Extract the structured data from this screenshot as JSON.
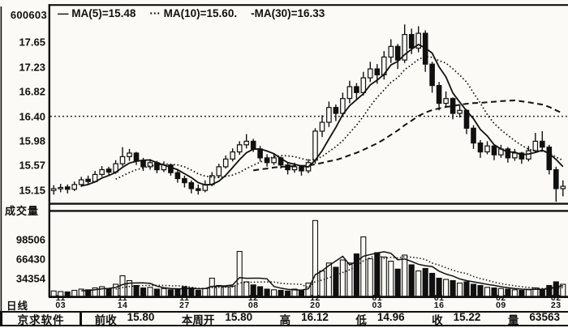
{
  "window": {
    "stock_code": "600603"
  },
  "legend": {
    "items": [
      "— MA(5)=15.48",
      "··· MA(10)=15.60.",
      "-MA(30)=16.33"
    ]
  },
  "volume_pane_title": "成交量",
  "period_label": "日线",
  "status_bar": {
    "brand": "京求软件",
    "fields": [
      {
        "label": "前收",
        "value": "15.80"
      },
      {
        "label": "本周开",
        "value": "15.80"
      },
      {
        "label": "高",
        "value": "16.12"
      },
      {
        "label": "低",
        "value": "14.96"
      },
      {
        "label": "收",
        "value": "15.22"
      },
      {
        "label": "量",
        "value": "63563"
      }
    ]
  },
  "colors": {
    "ink": "#101010",
    "paper": "#fbfaf6"
  },
  "chart_data": {
    "type": "candlestick",
    "title": "600603 daily K-line with volume",
    "price_axis_ticks": [
      17.65,
      17.23,
      16.82,
      16.4,
      15.98,
      15.57,
      15.15
    ],
    "volume_axis_ticks": [
      98506,
      66430,
      34354
    ],
    "reference_line_price": 16.4,
    "moving_average_values": {
      "MA5": 15.48,
      "MA10": 15.6,
      "MA30": 16.33
    },
    "price_ylim": [
      14.92,
      18.28
    ],
    "volume_ylim": [
      0,
      140000
    ],
    "grid": false,
    "legend_position": "top-left",
    "x_ticks": [
      {
        "label": "11/03",
        "index": 1
      },
      {
        "label": "11/14",
        "index": 10
      },
      {
        "label": "11/27",
        "index": 19
      },
      {
        "label": "12/08",
        "index": 29
      },
      {
        "label": "12/20",
        "index": 38
      },
      {
        "label": "01/03",
        "index": 47
      },
      {
        "label": "01/16",
        "index": 56
      },
      {
        "label": "02/09",
        "index": 65
      },
      {
        "label": "02/23",
        "index": 73
      }
    ],
    "candles_ohlc": [
      [
        15.15,
        15.24,
        15.08,
        15.18
      ],
      [
        15.18,
        15.26,
        15.12,
        15.2
      ],
      [
        15.21,
        15.25,
        15.1,
        15.17
      ],
      [
        15.17,
        15.3,
        15.14,
        15.25
      ],
      [
        15.25,
        15.38,
        15.21,
        15.33
      ],
      [
        15.34,
        15.4,
        15.24,
        15.3
      ],
      [
        15.3,
        15.48,
        15.28,
        15.42
      ],
      [
        15.42,
        15.56,
        15.38,
        15.5
      ],
      [
        15.51,
        15.55,
        15.4,
        15.46
      ],
      [
        15.46,
        15.66,
        15.43,
        15.6
      ],
      [
        15.6,
        15.88,
        15.56,
        15.72
      ],
      [
        15.72,
        15.85,
        15.65,
        15.78
      ],
      [
        15.78,
        15.8,
        15.58,
        15.65
      ],
      [
        15.65,
        15.7,
        15.48,
        15.55
      ],
      [
        15.55,
        15.68,
        15.5,
        15.62
      ],
      [
        15.62,
        15.65,
        15.44,
        15.5
      ],
      [
        15.5,
        15.64,
        15.46,
        15.58
      ],
      [
        15.58,
        15.6,
        15.4,
        15.45
      ],
      [
        15.45,
        15.5,
        15.28,
        15.35
      ],
      [
        15.35,
        15.4,
        15.2,
        15.28
      ],
      [
        15.28,
        15.32,
        15.1,
        15.18
      ],
      [
        15.18,
        15.25,
        15.08,
        15.15
      ],
      [
        15.15,
        15.32,
        15.12,
        15.25
      ],
      [
        15.25,
        15.46,
        15.22,
        15.4
      ],
      [
        15.4,
        15.6,
        15.36,
        15.55
      ],
      [
        15.55,
        15.74,
        15.52,
        15.68
      ],
      [
        15.68,
        15.86,
        15.64,
        15.8
      ],
      [
        15.8,
        15.98,
        15.75,
        15.92
      ],
      [
        15.92,
        16.1,
        15.86,
        15.98
      ],
      [
        15.98,
        16.02,
        15.8,
        15.85
      ],
      [
        15.85,
        15.9,
        15.64,
        15.7
      ],
      [
        15.7,
        15.76,
        15.55,
        15.62
      ],
      [
        15.62,
        15.76,
        15.58,
        15.7
      ],
      [
        15.7,
        15.72,
        15.52,
        15.58
      ],
      [
        15.58,
        15.62,
        15.42,
        15.5
      ],
      [
        15.5,
        15.62,
        15.45,
        15.55
      ],
      [
        15.55,
        15.58,
        15.4,
        15.48
      ],
      [
        15.48,
        15.68,
        15.44,
        15.62
      ],
      [
        15.66,
        16.2,
        15.6,
        16.15
      ],
      [
        16.15,
        16.42,
        16.05,
        16.3
      ],
      [
        16.3,
        16.65,
        16.22,
        16.55
      ],
      [
        16.55,
        16.6,
        16.32,
        16.45
      ],
      [
        16.45,
        16.8,
        16.4,
        16.7
      ],
      [
        16.7,
        17.0,
        16.62,
        16.9
      ],
      [
        16.9,
        16.96,
        16.68,
        16.8
      ],
      [
        16.8,
        17.15,
        16.75,
        17.05
      ],
      [
        17.05,
        17.32,
        16.98,
        17.2
      ],
      [
        17.2,
        17.28,
        16.95,
        17.1
      ],
      [
        17.1,
        17.5,
        17.02,
        17.4
      ],
      [
        17.4,
        17.7,
        17.3,
        17.58
      ],
      [
        17.58,
        17.62,
        17.2,
        17.35
      ],
      [
        17.35,
        17.95,
        17.3,
        17.78
      ],
      [
        17.78,
        17.88,
        17.45,
        17.55
      ],
      [
        17.55,
        17.92,
        17.48,
        17.8
      ],
      [
        17.8,
        17.85,
        17.15,
        17.28
      ],
      [
        17.28,
        17.32,
        16.8,
        16.92
      ],
      [
        16.92,
        16.98,
        16.5,
        16.62
      ],
      [
        16.62,
        16.82,
        16.55,
        16.7
      ],
      [
        16.7,
        16.72,
        16.35,
        16.45
      ],
      [
        16.45,
        16.6,
        16.38,
        16.5
      ],
      [
        16.5,
        16.52,
        16.1,
        16.2
      ],
      [
        16.2,
        16.25,
        15.85,
        15.95
      ],
      [
        15.95,
        16.0,
        15.7,
        15.8
      ],
      [
        15.8,
        15.98,
        15.76,
        15.9
      ],
      [
        15.9,
        15.92,
        15.66,
        15.75
      ],
      [
        15.75,
        15.92,
        15.7,
        15.85
      ],
      [
        15.85,
        15.88,
        15.62,
        15.7
      ],
      [
        15.7,
        15.85,
        15.65,
        15.78
      ],
      [
        15.78,
        15.8,
        15.6,
        15.68
      ],
      [
        15.68,
        15.9,
        15.64,
        15.82
      ],
      [
        15.82,
        16.12,
        15.78,
        15.98
      ],
      [
        15.98,
        16.15,
        15.8,
        15.88
      ],
      [
        15.88,
        15.92,
        15.42,
        15.5
      ],
      [
        15.5,
        15.55,
        14.96,
        15.18
      ],
      [
        15.18,
        15.32,
        15.05,
        15.22
      ]
    ],
    "volumes": [
      9000,
      8000,
      7500,
      10000,
      12000,
      11000,
      14000,
      16000,
      13000,
      20000,
      34000,
      26000,
      18000,
      14000,
      15000,
      12000,
      13000,
      11000,
      12000,
      16000,
      14000,
      10000,
      13000,
      30000,
      18000,
      16000,
      17000,
      74000,
      24000,
      19000,
      16000,
      12000,
      11000,
      10000,
      9000,
      12000,
      10000,
      22000,
      125000,
      42000,
      55000,
      48000,
      60000,
      55000,
      70000,
      98000,
      62000,
      72000,
      65000,
      58000,
      45000,
      68000,
      52000,
      42000,
      46000,
      38000,
      30000,
      28000,
      26000,
      22000,
      24000,
      20000,
      18000,
      15000,
      14000,
      13000,
      12000,
      11000,
      10000,
      11000,
      14000,
      12000,
      18000,
      24000,
      20000
    ]
  }
}
